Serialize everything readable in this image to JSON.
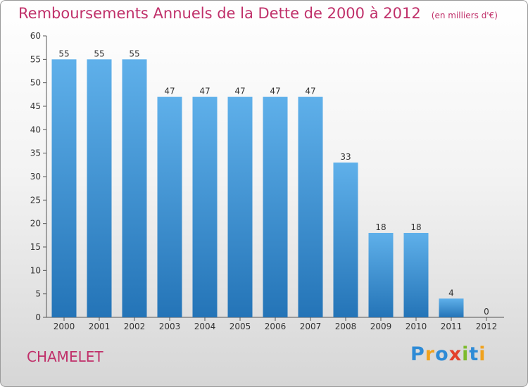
{
  "title": "Remboursements Annuels de la Dette de 2000 à 2012",
  "subtitle": "(en milliers d'€)",
  "commune": "CHAMELET",
  "logo": {
    "text": "Proxiti",
    "letters": [
      {
        "ch": "P",
        "color": "#2e8bd6"
      },
      {
        "ch": "r",
        "color": "#f0a21e"
      },
      {
        "ch": "o",
        "color": "#2e8bd6"
      },
      {
        "ch": "x",
        "color": "#e3402c"
      },
      {
        "ch": "i",
        "color": "#7dbb2c"
      },
      {
        "ch": "t",
        "color": "#2e8bd6"
      },
      {
        "ch": "i",
        "color": "#f0a21e"
      }
    ]
  },
  "colors": {
    "bar_top": "#5fb0ea",
    "bar_bottom": "#2474b7",
    "title": "#c0306a"
  },
  "chart_data": {
    "type": "bar",
    "categories": [
      "2000",
      "2001",
      "2002",
      "2003",
      "2004",
      "2005",
      "2006",
      "2007",
      "2008",
      "2009",
      "2010",
      "2011",
      "2012"
    ],
    "values": [
      55,
      55,
      55,
      47,
      47,
      47,
      47,
      47,
      33,
      18,
      18,
      4,
      0
    ],
    "ylim": [
      0,
      60
    ],
    "yticks": [
      0,
      5,
      10,
      15,
      20,
      25,
      30,
      35,
      40,
      45,
      50,
      55,
      60
    ],
    "grid": false,
    "legend": "none"
  }
}
